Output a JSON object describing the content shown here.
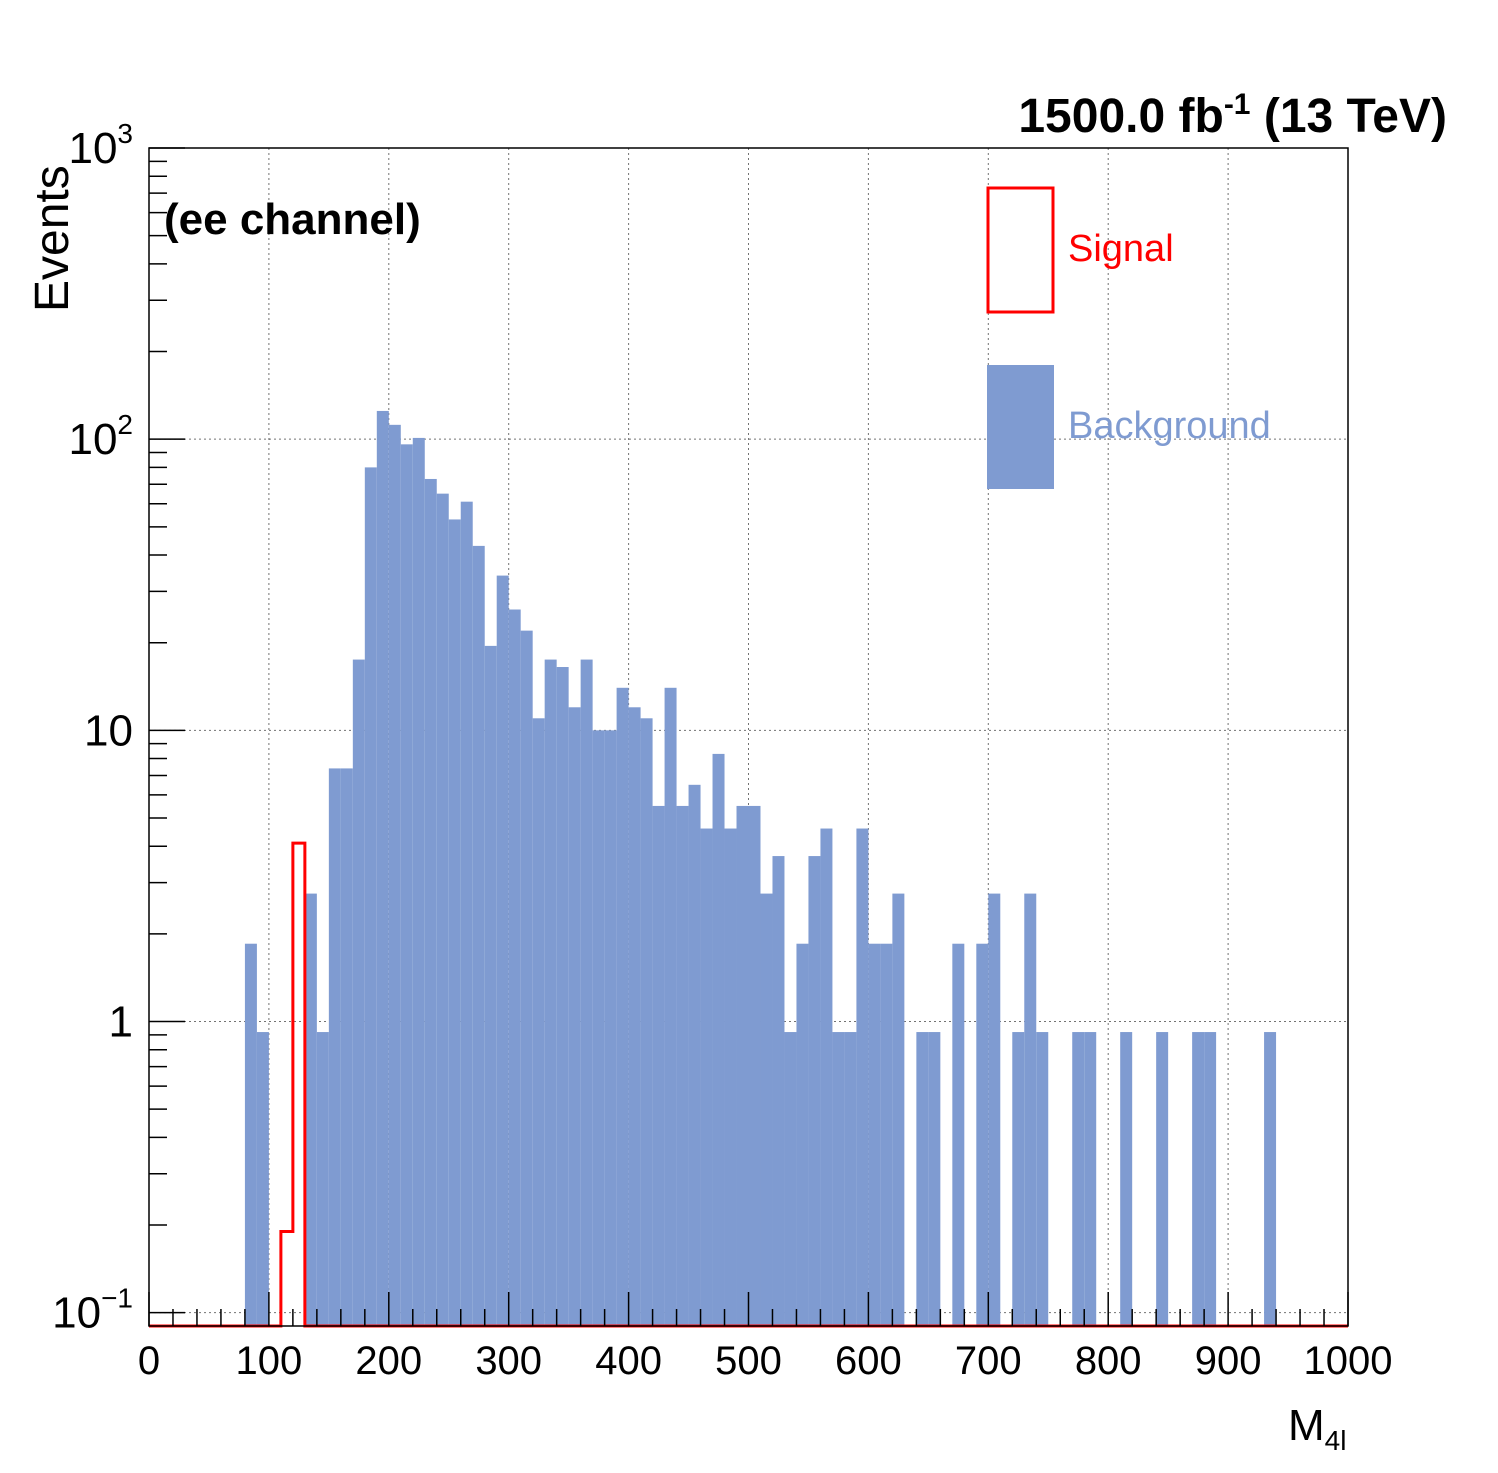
{
  "chart_data": {
    "type": "bar",
    "title": "1500.0 fb-1 (13 TeV)",
    "title_main": "1500.0 fb",
    "title_sup": "-1",
    "title_tail": " (13 TeV)",
    "annotation": "(ee channel)",
    "xlabel_main": "M",
    "xlabel_sub": "4l",
    "ylabel": "Events",
    "xlim": [
      0,
      1000
    ],
    "ylim": [
      0.09,
      1000
    ],
    "yscale": "log",
    "grid": true,
    "legend_placement": "top-right",
    "bin_width": 10,
    "x_ticks": [
      "0",
      "100",
      "200",
      "300",
      "400",
      "500",
      "600",
      "700",
      "800",
      "900",
      "1000"
    ],
    "y_ticks": [
      {
        "value": 0.1,
        "base": "10",
        "exp": "−1"
      },
      {
        "value": 1,
        "base": "1",
        "exp": ""
      },
      {
        "value": 10,
        "base": "10",
        "exp": ""
      },
      {
        "value": 100,
        "base": "10",
        "exp": "2"
      },
      {
        "value": 1000,
        "base": "10",
        "exp": "3"
      }
    ],
    "series": [
      {
        "name": "Background",
        "style": "filled",
        "color": "#7f9bd1",
        "bins": [
          {
            "x": 80,
            "y": 1.85
          },
          {
            "x": 90,
            "y": 0.92
          },
          {
            "x": 130,
            "y": 2.75
          },
          {
            "x": 140,
            "y": 0.92
          },
          {
            "x": 150,
            "y": 7.4
          },
          {
            "x": 160,
            "y": 7.4
          },
          {
            "x": 170,
            "y": 17.5
          },
          {
            "x": 180,
            "y": 80
          },
          {
            "x": 190,
            "y": 125
          },
          {
            "x": 200,
            "y": 112
          },
          {
            "x": 210,
            "y": 96
          },
          {
            "x": 220,
            "y": 101
          },
          {
            "x": 230,
            "y": 73
          },
          {
            "x": 240,
            "y": 65
          },
          {
            "x": 250,
            "y": 53
          },
          {
            "x": 260,
            "y": 61
          },
          {
            "x": 270,
            "y": 43
          },
          {
            "x": 280,
            "y": 19.5
          },
          {
            "x": 290,
            "y": 34
          },
          {
            "x": 300,
            "y": 26
          },
          {
            "x": 310,
            "y": 22
          },
          {
            "x": 320,
            "y": 11
          },
          {
            "x": 330,
            "y": 17.5
          },
          {
            "x": 340,
            "y": 16.5
          },
          {
            "x": 350,
            "y": 12
          },
          {
            "x": 360,
            "y": 17.5
          },
          {
            "x": 370,
            "y": 10
          },
          {
            "x": 380,
            "y": 10
          },
          {
            "x": 390,
            "y": 14
          },
          {
            "x": 400,
            "y": 12
          },
          {
            "x": 410,
            "y": 11
          },
          {
            "x": 420,
            "y": 5.5
          },
          {
            "x": 430,
            "y": 14
          },
          {
            "x": 440,
            "y": 5.5
          },
          {
            "x": 450,
            "y": 6.5
          },
          {
            "x": 460,
            "y": 4.6
          },
          {
            "x": 470,
            "y": 8.3
          },
          {
            "x": 480,
            "y": 4.6
          },
          {
            "x": 490,
            "y": 5.5
          },
          {
            "x": 500,
            "y": 5.5
          },
          {
            "x": 510,
            "y": 2.75
          },
          {
            "x": 520,
            "y": 3.7
          },
          {
            "x": 530,
            "y": 0.92
          },
          {
            "x": 540,
            "y": 1.85
          },
          {
            "x": 550,
            "y": 3.7
          },
          {
            "x": 560,
            "y": 4.6
          },
          {
            "x": 570,
            "y": 0.92
          },
          {
            "x": 580,
            "y": 0.92
          },
          {
            "x": 590,
            "y": 4.6
          },
          {
            "x": 600,
            "y": 1.85
          },
          {
            "x": 610,
            "y": 1.85
          },
          {
            "x": 620,
            "y": 2.75
          },
          {
            "x": 640,
            "y": 0.92
          },
          {
            "x": 650,
            "y": 0.92
          },
          {
            "x": 670,
            "y": 1.85
          },
          {
            "x": 690,
            "y": 1.85
          },
          {
            "x": 700,
            "y": 2.75
          },
          {
            "x": 720,
            "y": 0.92
          },
          {
            "x": 730,
            "y": 2.75
          },
          {
            "x": 740,
            "y": 0.92
          },
          {
            "x": 770,
            "y": 0.92
          },
          {
            "x": 780,
            "y": 0.92
          },
          {
            "x": 810,
            "y": 0.92
          },
          {
            "x": 840,
            "y": 0.92
          },
          {
            "x": 870,
            "y": 0.92
          },
          {
            "x": 880,
            "y": 0.92
          },
          {
            "x": 930,
            "y": 0.92
          }
        ]
      },
      {
        "name": "Signal",
        "style": "outline",
        "color": "#ff0000",
        "bins": [
          {
            "x": 110,
            "y": 0.19
          },
          {
            "x": 120,
            "y": 4.1
          }
        ]
      }
    ]
  }
}
